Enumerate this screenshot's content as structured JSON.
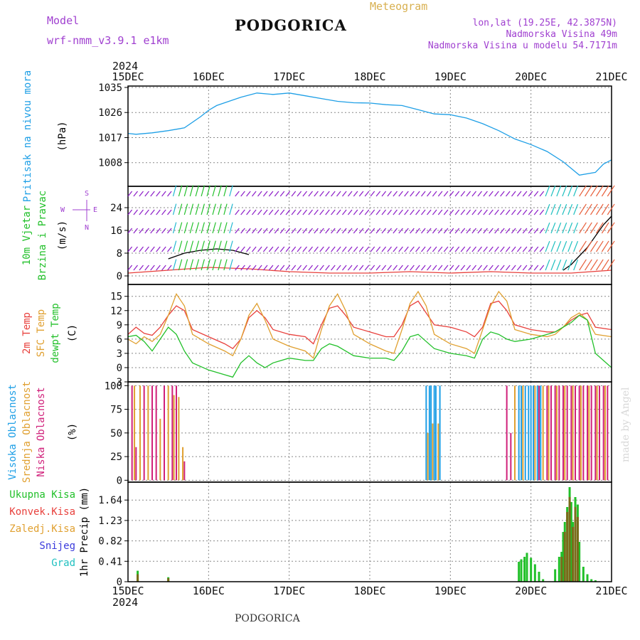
{
  "header": {
    "model_label": "Model",
    "model_name": "wrf-nmm_v3.9.1  e1km",
    "title": "PODGORICA",
    "meteogram_label": "Meteogram",
    "coords": "lon,lat (19.25E, 42.3875N)",
    "elevation": "Nadmorska Visina 49m",
    "model_elevation": "Nadmorska Visina u modelu 54.7171m",
    "footer_title": "PODGORICA",
    "credit": "made by Angel"
  },
  "colors": {
    "pressure": "#1e9fe6",
    "green": "#22c02a",
    "red": "#e8403c",
    "orange": "#e0a030",
    "purple": "#8c1cc8",
    "magenta": "#d0207a",
    "blue_label": "#3a3adc",
    "cyan": "#20c0c0",
    "accent_purple": "#a040d0",
    "accent_gold": "#d8b050"
  },
  "time_axis": {
    "year": "2024",
    "ticks": [
      "15DEC",
      "16DEC",
      "17DEC",
      "18DEC",
      "19DEC",
      "20DEC",
      "21DEC"
    ]
  },
  "chart_data": [
    {
      "type": "line",
      "id": "pressure",
      "ylabel_lines": [
        "Pritisak na nivou mora"
      ],
      "unit": "(hPa)",
      "yticks": [
        1008,
        1017,
        1026,
        1035
      ],
      "ylim": [
        999.5,
        1035.5
      ],
      "series": [
        {
          "color": "pressure",
          "x": [
            0,
            0.1,
            0.3,
            0.5,
            0.7,
            0.9,
            1,
            1.1,
            1.2,
            1.4,
            1.6,
            1.8,
            2,
            2.2,
            2.4,
            2.6,
            2.8,
            3,
            3.2,
            3.4,
            3.6,
            3.8,
            4,
            4.2,
            4.4,
            4.6,
            4.8,
            5,
            5.2,
            5.4,
            5.6,
            5.8,
            5.9,
            6
          ],
          "y": [
            1018.5,
            1018.2,
            1018.7,
            1019.5,
            1020.5,
            1024.5,
            1026.8,
            1028.5,
            1029.5,
            1031.5,
            1033,
            1032.5,
            1033,
            1032,
            1031,
            1030,
            1029.5,
            1029.4,
            1028.8,
            1028.5,
            1027,
            1025.5,
            1025.2,
            1024,
            1022,
            1019.5,
            1016.5,
            1014.5,
            1012,
            1008.3,
            1003.5,
            1004.5,
            1007.5,
            1009
          ]
        }
      ]
    },
    {
      "type": "line",
      "id": "wind",
      "ylabel_lines": [
        "10m Vjetar",
        "Brzina i Pravac"
      ],
      "unit": "(m/s)",
      "compass": [
        "S",
        "E",
        "W",
        "N"
      ],
      "yticks": [
        0,
        8,
        16,
        24
      ],
      "ylim": [
        -3,
        31.5
      ],
      "series": [
        {
          "color": "#000000",
          "x": [
            0.5,
            0.7,
            0.9,
            1.1,
            1.3,
            1.5
          ],
          "y": [
            6,
            8,
            9,
            9.5,
            9,
            7.5
          ]
        },
        {
          "color": "red",
          "x": [
            0,
            0.5,
            1,
            1.5,
            2,
            2.5,
            3,
            3.5,
            4,
            4.5,
            5,
            5.5,
            6
          ],
          "y": [
            1,
            2,
            3,
            2.5,
            1.5,
            1,
            1,
            1.5,
            1,
            1.5,
            1,
            1,
            2
          ]
        },
        {
          "color": "#000000",
          "x": [
            5.4,
            5.5,
            5.6,
            5.7,
            5.8,
            5.9,
            6
          ],
          "y": [
            2,
            4,
            7,
            10,
            14,
            18,
            21
          ]
        }
      ]
    },
    {
      "type": "line",
      "id": "temperature",
      "ylabel_lines": [
        "2m Temp",
        "SFC Temp",
        "dewpt Temp"
      ],
      "unit": "(C)",
      "yticks": [
        -3,
        0,
        3,
        6,
        9,
        12,
        15
      ],
      "ylim": [
        -3,
        17.5
      ],
      "series": [
        {
          "color": "red",
          "x": [
            0,
            0.1,
            0.2,
            0.3,
            0.4,
            0.5,
            0.6,
            0.7,
            0.8,
            1,
            1.2,
            1.3,
            1.4,
            1.5,
            1.6,
            1.7,
            1.8,
            2,
            2.2,
            2.3,
            2.4,
            2.5,
            2.6,
            2.7,
            2.8,
            3,
            3.2,
            3.3,
            3.4,
            3.5,
            3.6,
            3.7,
            3.8,
            4,
            4.2,
            4.3,
            4.4,
            4.5,
            4.6,
            4.7,
            4.8,
            5,
            5.2,
            5.3,
            5.4,
            5.5,
            5.6,
            5.7,
            5.8,
            6
          ],
          "y": [
            7,
            8.5,
            7.2,
            6.8,
            8.5,
            11,
            13,
            12,
            8,
            6.5,
            5,
            4,
            6,
            10.5,
            12,
            10.5,
            8,
            7,
            6.5,
            5,
            9,
            12.5,
            13,
            11,
            8.5,
            7.5,
            6.5,
            6.5,
            9,
            13,
            14,
            11.5,
            9,
            8.5,
            7.5,
            6.5,
            8.5,
            13.5,
            14,
            12,
            9,
            8,
            7.5,
            7.5,
            8.5,
            10,
            11,
            11.5,
            8.5,
            8
          ]
        },
        {
          "color": "orange",
          "x": [
            0,
            0.1,
            0.2,
            0.3,
            0.4,
            0.5,
            0.6,
            0.7,
            0.8,
            1,
            1.2,
            1.3,
            1.4,
            1.5,
            1.6,
            1.7,
            1.8,
            2,
            2.2,
            2.3,
            2.4,
            2.5,
            2.6,
            2.7,
            2.8,
            3,
            3.2,
            3.3,
            3.4,
            3.5,
            3.6,
            3.7,
            3.8,
            4,
            4.2,
            4.3,
            4.4,
            4.5,
            4.6,
            4.7,
            4.8,
            5,
            5.2,
            5.3,
            5.4,
            5.5,
            5.6,
            5.7,
            5.8,
            6
          ],
          "y": [
            6,
            5,
            6.5,
            5.5,
            7,
            11,
            15.5,
            13,
            7,
            5,
            3.5,
            2.5,
            6,
            11,
            13.5,
            10,
            6,
            4.5,
            3.5,
            2,
            8,
            13,
            15.5,
            12,
            7,
            5,
            3.5,
            3,
            8,
            13.5,
            16,
            13,
            7,
            5,
            4,
            3,
            8,
            13,
            16,
            14,
            8,
            7,
            6.5,
            7,
            8.5,
            10.5,
            11.5,
            10,
            7,
            6.5
          ]
        },
        {
          "color": "green",
          "x": [
            0,
            0.1,
            0.2,
            0.3,
            0.4,
            0.5,
            0.6,
            0.7,
            0.8,
            1,
            1.2,
            1.3,
            1.4,
            1.5,
            1.6,
            1.7,
            1.8,
            2,
            2.2,
            2.3,
            2.4,
            2.5,
            2.6,
            2.7,
            2.8,
            3,
            3.2,
            3.3,
            3.4,
            3.5,
            3.6,
            3.7,
            3.8,
            4,
            4.2,
            4.3,
            4.4,
            4.5,
            4.6,
            4.7,
            4.8,
            5,
            5.2,
            5.3,
            5.4,
            5.5,
            5.6,
            5.7,
            5.8,
            6
          ],
          "y": [
            6.5,
            6.8,
            5.5,
            3.5,
            6,
            8.5,
            7,
            3.5,
            1,
            -0.5,
            -1.5,
            -2,
            1,
            2.5,
            1,
            0,
            1,
            2,
            1.5,
            1.5,
            4,
            5,
            4.5,
            3.5,
            2.5,
            2,
            2,
            1.5,
            3.5,
            6.5,
            7,
            5.5,
            4,
            3,
            2.5,
            2,
            6,
            7.5,
            7,
            6,
            5.5,
            6,
            7,
            7.5,
            8.5,
            9.5,
            11,
            10,
            3,
            0
          ]
        }
      ]
    },
    {
      "type": "bar",
      "id": "clouds",
      "ylabel_lines": [
        "Visoka Oblacnost",
        "Srednja Oblacnost",
        "Niska Oblacnost"
      ],
      "unit": "(%)",
      "yticks": [
        0,
        25,
        50,
        75,
        100
      ],
      "ylim": [
        -2,
        104
      ],
      "series": [
        {
          "color": "magenta",
          "x": [
            0.05,
            0.1,
            0.2,
            0.3,
            0.35,
            0.45,
            0.55,
            0.6,
            0.7
          ],
          "y": [
            100,
            35,
            100,
            100,
            100,
            100,
            100,
            100,
            20
          ]
        },
        {
          "color": "orange",
          "x": [
            0.08,
            0.15,
            0.25,
            0.4,
            0.5,
            0.57,
            0.63,
            0.68,
            3.72,
            3.78,
            3.85
          ],
          "y": [
            100,
            100,
            100,
            65,
            100,
            90,
            88,
            35,
            50,
            60,
            60
          ]
        },
        {
          "color": "pressure",
          "x": [
            3.7,
            3.74,
            3.76,
            3.8,
            3.82,
            3.87
          ],
          "y": [
            100,
            100,
            100,
            100,
            100,
            100
          ]
        },
        {
          "color": "magenta",
          "x": [
            4.7,
            4.75,
            5.1,
            5.2,
            5.25,
            5.3,
            5.35,
            5.4,
            5.45,
            5.5,
            5.55,
            5.6,
            5.65,
            5.7,
            5.75,
            5.8,
            5.85,
            5.9,
            5.95
          ],
          "y": [
            100,
            50,
            100,
            100,
            100,
            100,
            100,
            100,
            100,
            100,
            100,
            100,
            100,
            100,
            100,
            100,
            100,
            100,
            100
          ]
        },
        {
          "color": "orange",
          "x": [
            4.8,
            4.9,
            5.05,
            5.15,
            5.22,
            5.32,
            5.42,
            5.52,
            5.62,
            5.72,
            5.82,
            5.92
          ],
          "y": [
            100,
            100,
            100,
            100,
            100,
            100,
            100,
            100,
            100,
            100,
            100,
            100
          ]
        },
        {
          "color": "pressure",
          "x": [
            4.85,
            4.88,
            4.93,
            4.97,
            5.0,
            5.03,
            5.08,
            5.12
          ],
          "y": [
            100,
            100,
            100,
            100,
            100,
            100,
            100,
            100
          ]
        }
      ]
    },
    {
      "type": "bar",
      "id": "precip",
      "ylabel_lines": [
        "1hr Precip (mm)"
      ],
      "legend_lines": [
        "Ukupna Kisa",
        "Konvek.Kisa",
        "Zaledj.Kisa",
        "Snijeg",
        "Grad"
      ],
      "yticks": [
        "0",
        "0.41",
        "0.82",
        "1.23",
        "1.64"
      ],
      "ylim": [
        0,
        2.0
      ],
      "series": [
        {
          "color": "green",
          "x": [
            0.12,
            0.5,
            4.85,
            4.88,
            4.92,
            4.95,
            5.0,
            5.05,
            5.1,
            5.15,
            5.3,
            5.35,
            5.38,
            5.4,
            5.42,
            5.45,
            5.48,
            5.5,
            5.52,
            5.55,
            5.58,
            5.6,
            5.65,
            5.7,
            5.75,
            5.8
          ],
          "y": [
            0.22,
            0.09,
            0.4,
            0.45,
            0.5,
            0.58,
            0.48,
            0.35,
            0.2,
            0.05,
            0.25,
            0.5,
            0.6,
            1.0,
            1.2,
            1.5,
            1.9,
            1.6,
            1.2,
            1.7,
            1.55,
            0.8,
            0.3,
            0.15,
            0.05,
            0.03
          ]
        },
        {
          "color": "#7a6a1a",
          "x": [
            0.12,
            0.5,
            5.38,
            5.42,
            5.45,
            5.48,
            5.52,
            5.55,
            5.58
          ],
          "y": [
            0.15,
            0.07,
            0.5,
            1.0,
            1.4,
            1.7,
            1.1,
            1.5,
            1.3
          ]
        }
      ]
    }
  ]
}
